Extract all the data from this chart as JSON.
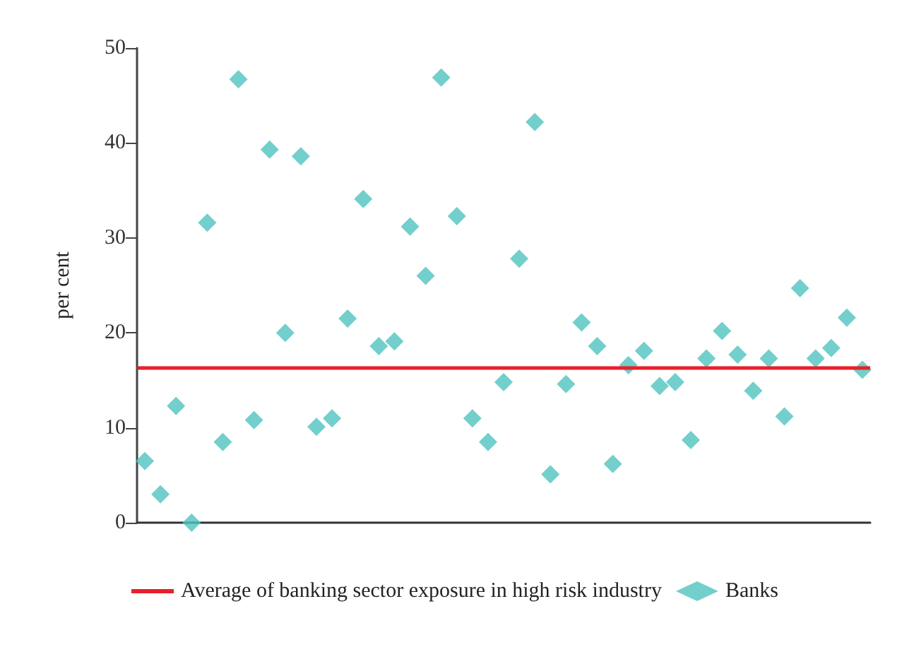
{
  "chart_data": {
    "type": "scatter",
    "ylabel": "per cent",
    "categories": [
      null,
      null,
      null,
      null,
      null,
      null,
      null,
      null,
      null,
      null,
      null,
      null,
      null,
      null,
      null,
      null,
      null,
      null,
      null,
      null,
      null,
      null,
      null,
      null,
      null,
      null,
      null,
      null,
      null,
      null,
      null,
      null,
      null,
      null,
      null,
      null,
      null,
      null,
      null,
      null,
      null,
      null,
      null,
      null,
      null,
      null,
      null
    ],
    "series": [
      {
        "name": "Banks",
        "color": "#4fc3bf",
        "values": [
          6.5,
          3,
          12.3,
          0,
          31.6,
          8.5,
          46.7,
          10.8,
          39.3,
          20,
          38.6,
          10.1,
          11,
          21.5,
          34.1,
          18.6,
          19.1,
          31.2,
          26,
          46.9,
          32.3,
          11,
          8.5,
          14.8,
          27.8,
          42.2,
          5.1,
          14.6,
          21.1,
          18.6,
          6.2,
          16.6,
          18.1,
          14.4,
          14.8,
          8.7,
          17.3,
          20.2,
          17.7,
          13.9,
          17.3,
          11.2,
          24.7,
          17.3,
          18.4,
          21.6,
          16.1
        ]
      }
    ],
    "ref_lines": [
      {
        "axis": "y",
        "value": 16.3,
        "label": "Average of banking sector exposure in high risk industry",
        "color": "#e8202a"
      }
    ],
    "ylim": [
      0,
      50
    ],
    "yticks": [
      0,
      10,
      20,
      30,
      40,
      50
    ],
    "marker": "diamond",
    "grid": false,
    "legend": "bottom left"
  }
}
